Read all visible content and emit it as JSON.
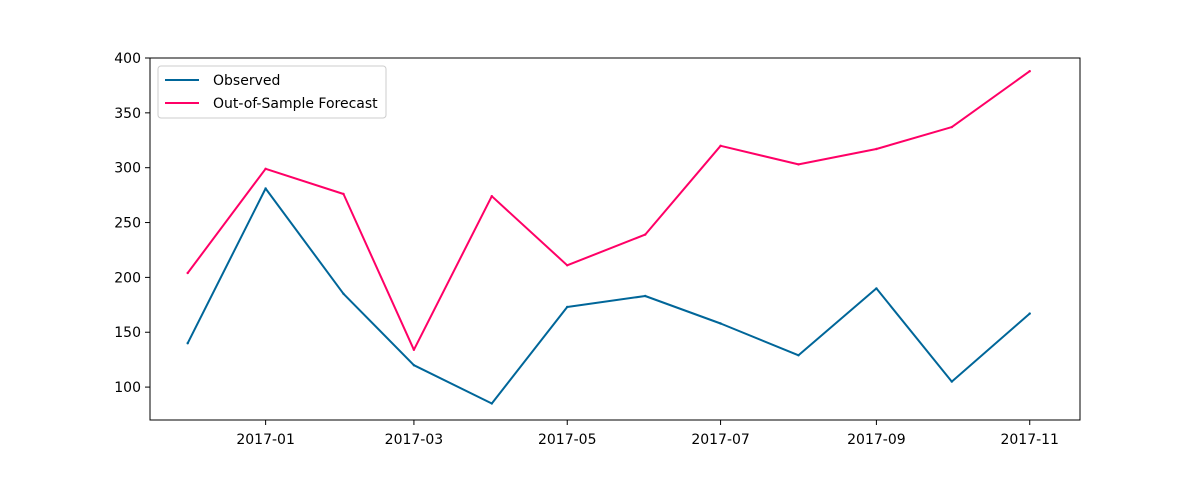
{
  "chart_data": {
    "type": "line",
    "title": "",
    "xlabel": "",
    "ylabel": "",
    "x": [
      "2016-12-01",
      "2017-01-01",
      "2017-02-01",
      "2017-03-01",
      "2017-04-01",
      "2017-05-01",
      "2017-06-01",
      "2017-07-01",
      "2017-08-01",
      "2017-09-01",
      "2017-10-01",
      "2017-11-01"
    ],
    "xticks": [
      "2017-01",
      "2017-03",
      "2017-05",
      "2017-07",
      "2017-09",
      "2017-11"
    ],
    "yticks": [
      100,
      150,
      200,
      250,
      300,
      350,
      400
    ],
    "ylim": [
      70,
      400
    ],
    "xlim": [
      "2016-11-16",
      "2017-11-21"
    ],
    "grid": false,
    "legend": "top-left",
    "series": [
      {
        "name": "Observed",
        "color": "#006699",
        "values": [
          140,
          281,
          185,
          120,
          85,
          173,
          183,
          158,
          129,
          190,
          105,
          167
        ]
      },
      {
        "name": "Out-of-Sample Forecast",
        "color": "#ff0066",
        "values": [
          204,
          299,
          276,
          134,
          274,
          211,
          239,
          320,
          303,
          317,
          337,
          388
        ]
      }
    ]
  }
}
